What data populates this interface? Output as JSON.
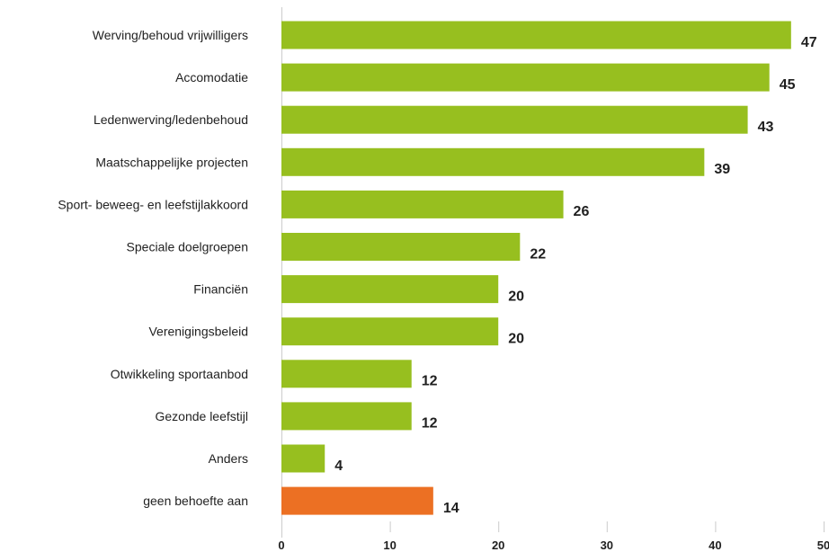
{
  "chart_data": {
    "type": "bar",
    "orientation": "horizontal",
    "categories": [
      "Werving/behoud vrijwilligers",
      "Accomodatie",
      "Ledenwerving/ledenbehoud",
      "Maatschappelijke projecten",
      "Sport- beweeg- en leefstijlakkoord",
      "Speciale doelgroepen",
      "Financiën",
      "Verenigingsbeleid",
      "Otwikkeling sportaanbod",
      "Gezonde leefstijl",
      "Anders",
      "geen behoefte aan"
    ],
    "values": [
      47,
      45,
      43,
      39,
      26,
      22,
      20,
      20,
      12,
      12,
      4,
      14
    ],
    "bar_colors": [
      "#97bf1f",
      "#97bf1f",
      "#97bf1f",
      "#97bf1f",
      "#97bf1f",
      "#97bf1f",
      "#97bf1f",
      "#97bf1f",
      "#97bf1f",
      "#97bf1f",
      "#97bf1f",
      "#ec7023"
    ],
    "xlim": [
      0,
      50
    ],
    "x_ticks": [
      "0",
      "10",
      "20",
      "30",
      "40",
      "50"
    ],
    "grid": false,
    "legend": "none",
    "title": "",
    "xlabel": "",
    "ylabel": ""
  }
}
